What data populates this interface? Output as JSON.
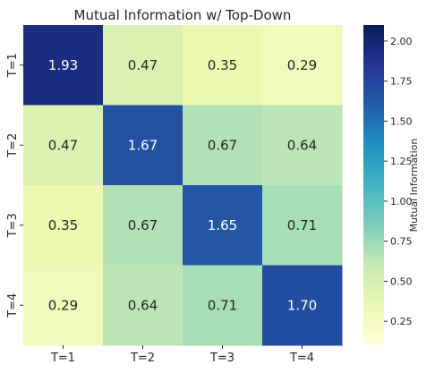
{
  "chart_data": {
    "type": "heatmap",
    "title": "Mutual Information w/ Top-Down",
    "xlabel": "",
    "ylabel": "",
    "x_categories": [
      "T=1",
      "T=2",
      "T=3",
      "T=4"
    ],
    "y_categories": [
      "T=1",
      "T=2",
      "T=3",
      "T=4"
    ],
    "values": [
      [
        1.93,
        0.47,
        0.35,
        0.29
      ],
      [
        0.47,
        1.67,
        0.67,
        0.64
      ],
      [
        0.35,
        0.67,
        1.65,
        0.71
      ],
      [
        0.29,
        0.64,
        0.71,
        1.7
      ]
    ],
    "annotations": [
      [
        "1.93",
        "0.47",
        "0.35",
        "0.29"
      ],
      [
        "0.47",
        "1.67",
        "0.67",
        "0.64"
      ],
      [
        "0.35",
        "0.67",
        "1.65",
        "0.71"
      ],
      [
        "0.29",
        "0.64",
        "0.71",
        "1.70"
      ]
    ],
    "colorbar": {
      "label": "Mutual Information",
      "range": [
        0.1,
        2.1
      ],
      "ticks": [
        0.25,
        0.5,
        0.75,
        1.0,
        1.25,
        1.5,
        1.75,
        2.0
      ],
      "tick_labels": [
        "0.25",
        "0.50",
        "0.75",
        "1.00",
        "1.25",
        "1.50",
        "1.75",
        "2.00"
      ],
      "colormap": "YlGnBu",
      "colormap_stops": [
        "#ffffd9",
        "#edf8b1",
        "#c7e9b4",
        "#7fcdbb",
        "#41b6c4",
        "#1d91c0",
        "#225ea8",
        "#253494",
        "#081d58"
      ]
    },
    "annotation_text_colors": {
      "dark": "#262626",
      "light": "#ffffff"
    }
  }
}
